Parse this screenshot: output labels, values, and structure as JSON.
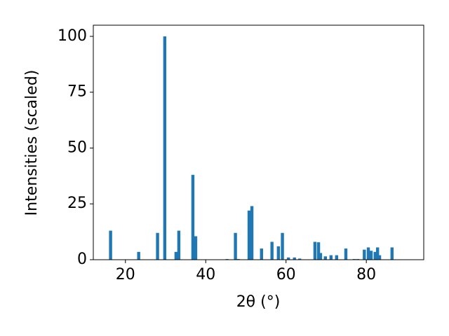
{
  "chart_data": {
    "type": "bar",
    "x_label": "2θ (°)",
    "y_label": "Intensities (scaled)",
    "x": [
      16.3,
      23.3,
      28.0,
      29.8,
      32.6,
      33.3,
      36.8,
      37.5,
      45.3,
      47.4,
      48.1,
      50.8,
      51.1,
      51.5,
      53.9,
      56.5,
      58.1,
      59.1,
      60.6,
      62.1,
      63.4,
      67.2,
      68.1,
      68.6,
      69.8,
      71.2,
      72.6,
      74.9,
      77.0,
      77.9,
      79.5,
      80.5,
      81.2,
      82.2,
      82.8,
      83.3,
      86.4
    ],
    "values": [
      13,
      3.5,
      12,
      100,
      3.5,
      13,
      38,
      10.5,
      0.3,
      12,
      0.3,
      22,
      10.5,
      24,
      5,
      8,
      6,
      12,
      1,
      1,
      0.5,
      8,
      7.8,
      3,
      1.5,
      2,
      2,
      5,
      0.3,
      0.3,
      4.5,
      5.5,
      4,
      3.5,
      5.5,
      2,
      5.5
    ],
    "color": "#1f77b4",
    "xlim": [
      12,
      94.3
    ],
    "xticks": [
      20,
      40,
      60,
      80
    ],
    "ylim": [
      0,
      105
    ],
    "yticks": [
      0,
      25,
      50,
      75,
      100
    ]
  }
}
